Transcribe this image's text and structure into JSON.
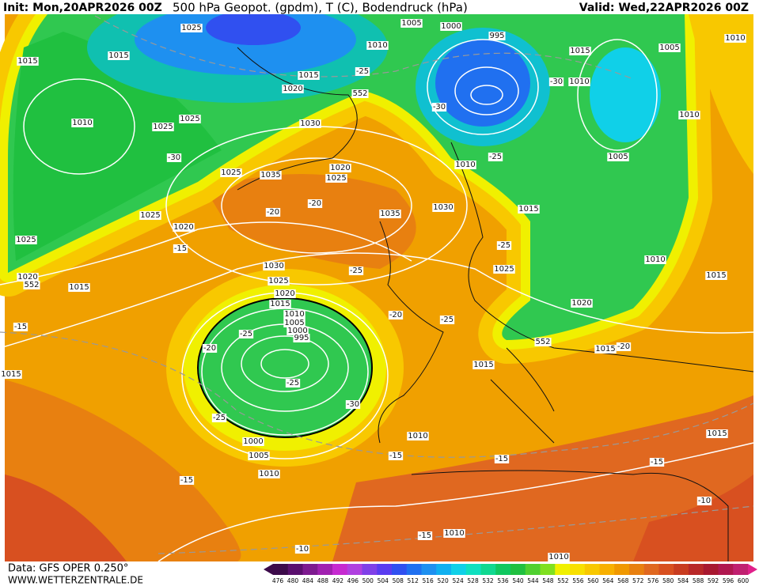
{
  "header": {
    "init": "Init: Mon,20APR2026 00Z",
    "title": "500 hPa Geopot. (gpdm), T (C), Bodendruck (hPa)",
    "valid": "Valid: Wed,22APR2026 00Z"
  },
  "footer": {
    "data": "Data: GFS OPER 0.250°",
    "site": "WWW.WETTERZENTRALE.DE"
  },
  "scale": {
    "labels": [
      476,
      480,
      484,
      488,
      492,
      496,
      500,
      504,
      508,
      512,
      516,
      520,
      524,
      528,
      532,
      536,
      540,
      544,
      548,
      552,
      556,
      560,
      564,
      568,
      572,
      576,
      580,
      584,
      588,
      592,
      596,
      600
    ],
    "colors": [
      "#3c0a4a",
      "#5a0f6e",
      "#7d1a8f",
      "#a020b0",
      "#c62ad0",
      "#b040e0",
      "#8040e8",
      "#5a3cf0",
      "#3050f0",
      "#2070f0",
      "#1e90f0",
      "#10b0f0",
      "#10d0e8",
      "#10e0c0",
      "#10d890",
      "#10c860",
      "#20c040",
      "#50d030",
      "#80e020",
      "#f0f000",
      "#f8e000",
      "#f8c800",
      "#f8b000",
      "#f09800",
      "#e88010",
      "#e06820",
      "#d85020",
      "#c83c20",
      "#b82828",
      "#a81830",
      "#b01850",
      "#c02070"
    ]
  },
  "map_labels": [
    "1025",
    "1015",
    "1015",
    "1010",
    "1025",
    "1025",
    "-30",
    "1025",
    "1025",
    "1020",
    "1025",
    "-15",
    "1020",
    "1015",
    "-15",
    "1015",
    "1020",
    "1030",
    "1035",
    "1020",
    "1025",
    "-20",
    "-20",
    "1035",
    "1030",
    "1010",
    "-25",
    "1010",
    "1005",
    "1000",
    "995",
    "-30",
    "-25",
    "1015",
    "-30",
    "1010",
    "1005",
    "1010",
    "1010",
    "1005",
    "1015",
    "-25",
    "1025",
    "1010",
    "1015",
    "1020",
    "-25",
    "1030",
    "1025",
    "1020",
    "1015",
    "1010",
    "1005",
    "1000",
    "995",
    "-20",
    "-25",
    "-25",
    "-20",
    "-25",
    "1015",
    "1015",
    "-30",
    "-25",
    "1000",
    "1005",
    "1010",
    "1010",
    "-15",
    "-15",
    "-15",
    "1015",
    "-15",
    "-10",
    "1010",
    "-15",
    "-10",
    "1010",
    "-20",
    "1015",
    "552",
    "552",
    "552"
  ]
}
